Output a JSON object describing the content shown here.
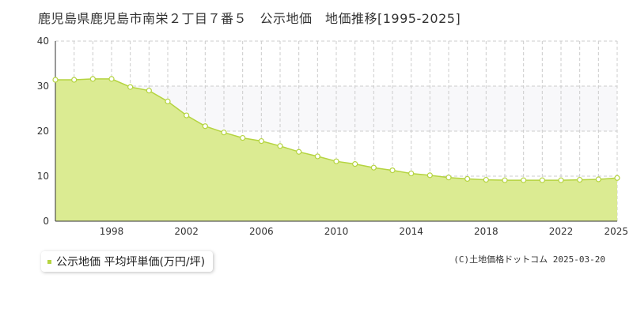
{
  "title": "鹿児島県鹿児島市南栄２丁目７番５　公示地価　地価推移[1995-2025]",
  "legend_label": "公示地価 平均坪単価(万円/坪)",
  "copyright": "(C)土地価格ドットコム 2025-03-20",
  "colors": {
    "area_fill": "#dbeb92",
    "line": "#b5d440",
    "marker_fill": "#ffffff",
    "marker_stroke": "#b5d440",
    "legend_swatch": "#b5d440",
    "grid": "#cccccc",
    "upper_band": "#f8f8fa"
  },
  "chart_data": {
    "type": "area",
    "title": "",
    "xlabel": "",
    "ylabel": "",
    "x": [
      1995,
      1996,
      1997,
      1998,
      1999,
      2000,
      2001,
      2002,
      2003,
      2004,
      2005,
      2006,
      2007,
      2008,
      2009,
      2010,
      2011,
      2012,
      2013,
      2014,
      2015,
      2016,
      2017,
      2018,
      2019,
      2020,
      2021,
      2022,
      2023,
      2024,
      2025
    ],
    "series": [
      {
        "values": [
          31.4,
          31.4,
          31.6,
          31.6,
          29.8,
          29.0,
          26.6,
          23.5,
          21.1,
          19.7,
          18.5,
          17.8,
          16.7,
          15.4,
          14.4,
          13.3,
          12.7,
          11.9,
          11.3,
          10.6,
          10.2,
          9.7,
          9.4,
          9.2,
          9.1,
          9.1,
          9.1,
          9.1,
          9.2,
          9.3,
          9.6
        ]
      }
    ],
    "xlim": [
      1995,
      2025
    ],
    "ylim": [
      0,
      40
    ],
    "y_ticks": [
      0,
      10,
      20,
      30,
      40
    ],
    "x_tick_labels": [
      "1998",
      "2002",
      "2006",
      "2010",
      "2014",
      "2018",
      "2022",
      "2025"
    ],
    "grid": true,
    "legend_position": "bottom-left"
  }
}
